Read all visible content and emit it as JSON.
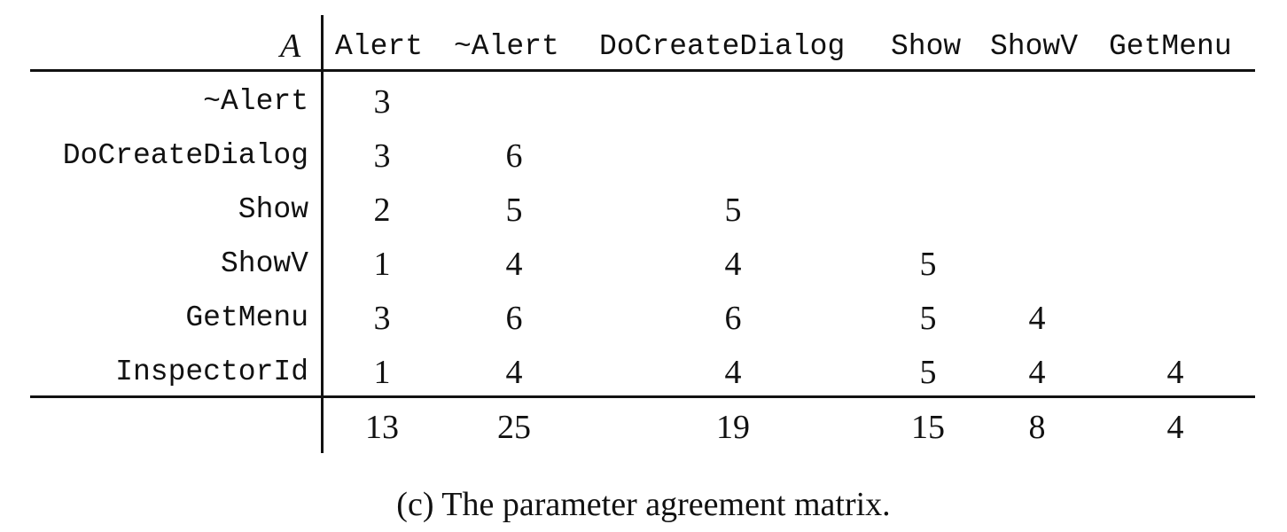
{
  "table": {
    "corner_label": "A",
    "columns": [
      "Alert",
      "~Alert",
      "DoCreateDialog",
      "Show",
      "ShowV",
      "GetMenu"
    ],
    "rows": [
      {
        "label": "~Alert",
        "values": [
          "3",
          "",
          "",
          "",
          "",
          ""
        ]
      },
      {
        "label": "DoCreateDialog",
        "values": [
          "3",
          "6",
          "",
          "",
          "",
          ""
        ]
      },
      {
        "label": "Show",
        "values": [
          "2",
          "5",
          "5",
          "",
          "",
          ""
        ]
      },
      {
        "label": "ShowV",
        "values": [
          "1",
          "4",
          "4",
          "5",
          "",
          ""
        ]
      },
      {
        "label": "GetMenu",
        "values": [
          "3",
          "6",
          "6",
          "5",
          "4",
          ""
        ]
      },
      {
        "label": "InspectorId",
        "values": [
          "1",
          "4",
          "4",
          "5",
          "4",
          "4"
        ]
      }
    ],
    "totals": [
      "13",
      "25",
      "19",
      "15",
      "8",
      "4"
    ]
  },
  "caption": "(c) The parameter agreement matrix."
}
